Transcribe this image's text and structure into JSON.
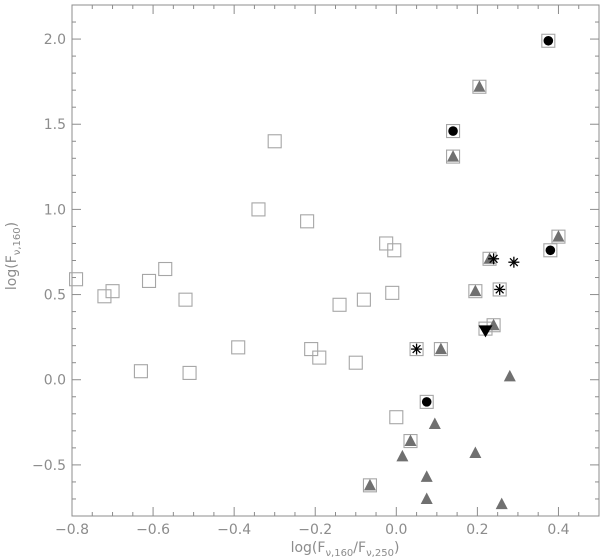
{
  "chart_data": {
    "type": "scatter",
    "xlim": [
      -0.8,
      0.5
    ],
    "ylim": [
      -0.8,
      2.2
    ],
    "x_ticks": [
      -0.8,
      -0.6,
      -0.4,
      -0.2,
      0.0,
      0.2,
      0.4
    ],
    "x_tick_labels": [
      "−0.8",
      "−0.6",
      "−0.4",
      "−0.2",
      "0.0",
      "0.2",
      "0.4"
    ],
    "y_ticks": [
      -0.5,
      0.0,
      0.5,
      1.0,
      1.5,
      2.0
    ],
    "y_tick_labels": [
      "−0.5",
      "0.0",
      "0.5",
      "1.0",
      "1.5",
      "2.0"
    ],
    "xlabel_parts": {
      "pre": "log(F",
      "sub1": "ν,160",
      "mid": "/F",
      "sub2": "ν,250",
      "post": ")"
    },
    "ylabel_parts": {
      "pre": "log(F",
      "sub1": "ν,160",
      "post": ")"
    },
    "grid": false,
    "colors": {
      "axis": "#8c8c8c",
      "open_square": "#a6a6a6",
      "triangle": "#707070",
      "filled": "#000000"
    },
    "series": [
      {
        "marker": "open-square",
        "color": "#a6a6a6",
        "points": [
          [
            -0.79,
            0.59
          ],
          [
            -0.72,
            0.49
          ],
          [
            -0.7,
            0.52
          ],
          [
            -0.63,
            0.05
          ],
          [
            -0.61,
            0.58
          ],
          [
            -0.57,
            0.65
          ],
          [
            -0.52,
            0.47
          ],
          [
            -0.51,
            0.04
          ],
          [
            -0.39,
            0.19
          ],
          [
            -0.34,
            1.0
          ],
          [
            -0.3,
            1.4
          ],
          [
            -0.22,
            0.93
          ],
          [
            -0.21,
            0.18
          ],
          [
            -0.19,
            0.13
          ],
          [
            -0.14,
            0.44
          ],
          [
            -0.1,
            0.1
          ],
          [
            -0.08,
            0.47
          ],
          [
            -0.025,
            0.8
          ],
          [
            -0.01,
            0.51
          ],
          [
            -0.005,
            0.76
          ],
          [
            0.0,
            -0.22
          ],
          [
            0.05,
            0.18
          ],
          [
            0.075,
            -0.13
          ],
          [
            0.11,
            0.18
          ],
          [
            0.14,
            1.46
          ],
          [
            0.14,
            1.31
          ],
          [
            0.195,
            0.52
          ],
          [
            0.205,
            1.72
          ],
          [
            0.23,
            0.71
          ],
          [
            0.24,
            0.32
          ],
          [
            0.255,
            0.53
          ],
          [
            0.375,
            1.99
          ],
          [
            0.38,
            0.76
          ],
          [
            0.4,
            0.84
          ],
          [
            -0.065,
            -0.62
          ],
          [
            0.035,
            -0.36
          ],
          [
            0.22,
            0.3
          ]
        ]
      },
      {
        "marker": "triangle-up",
        "color": "#707070",
        "points": [
          [
            0.14,
            1.31
          ],
          [
            0.205,
            1.72
          ],
          [
            0.195,
            0.52
          ],
          [
            0.23,
            0.71
          ],
          [
            0.24,
            0.32
          ],
          [
            0.4,
            0.84
          ],
          [
            0.11,
            0.18
          ],
          [
            0.28,
            0.02
          ],
          [
            0.035,
            -0.36
          ],
          [
            0.015,
            -0.45
          ],
          [
            0.095,
            -0.26
          ],
          [
            0.195,
            -0.43
          ],
          [
            0.075,
            -0.57
          ],
          [
            0.075,
            -0.7
          ],
          [
            0.26,
            -0.73
          ],
          [
            -0.065,
            -0.62
          ]
        ]
      },
      {
        "marker": "filled-circle",
        "color": "#000000",
        "points": [
          [
            0.375,
            1.99
          ],
          [
            0.14,
            1.46
          ],
          [
            0.38,
            0.76
          ],
          [
            0.075,
            -0.13
          ]
        ]
      },
      {
        "marker": "asterisk",
        "color": "#000000",
        "points": [
          [
            0.05,
            0.18
          ],
          [
            0.24,
            0.71
          ],
          [
            0.29,
            0.69
          ],
          [
            0.255,
            0.53
          ]
        ]
      },
      {
        "marker": "triangle-down",
        "color": "#000000",
        "points": [
          [
            0.22,
            0.29
          ]
        ]
      }
    ]
  }
}
